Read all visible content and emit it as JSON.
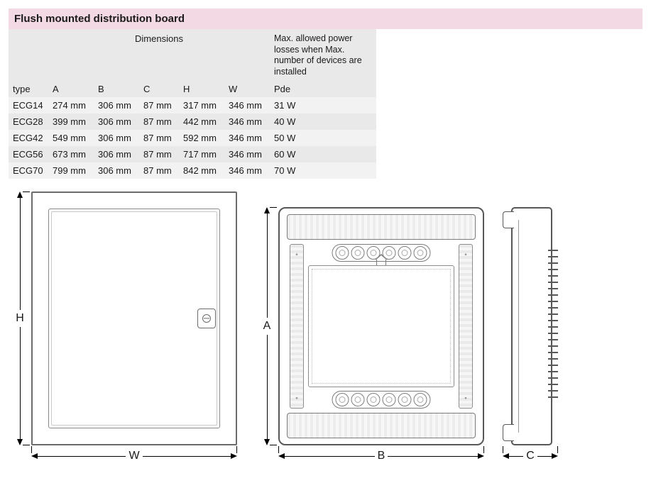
{
  "title": "Flush mounted distribution board",
  "table": {
    "type_label": "type",
    "dimensions_label": "Dimensions",
    "pde_header": "Max. allowed power losses when Max. number of devices are installed",
    "columns": [
      "A",
      "B",
      "C",
      "H",
      "W"
    ],
    "pde_sub": "Pde",
    "rows": [
      {
        "type": "ECG14",
        "A": "274 mm",
        "B": "306 mm",
        "C": "87 mm",
        "H": "317 mm",
        "W": "346 mm",
        "Pde": "31 W"
      },
      {
        "type": "ECG28",
        "A": "399 mm",
        "B": "306 mm",
        "C": "87 mm",
        "H": "442 mm",
        "W": "346 mm",
        "Pde": "40 W"
      },
      {
        "type": "ECG42",
        "A": "549 mm",
        "B": "306 mm",
        "C": "87 mm",
        "H": "592 mm",
        "W": "346 mm",
        "Pde": "50 W"
      },
      {
        "type": "ECG56",
        "A": "673 mm",
        "B": "306 mm",
        "C": "87 mm",
        "H": "717 mm",
        "W": "346 mm",
        "Pde": "60 W"
      },
      {
        "type": "ECG70",
        "A": "799 mm",
        "B": "306 mm",
        "C": "87 mm",
        "H": "842 mm",
        "W": "346 mm",
        "Pde": "70 W"
      }
    ]
  },
  "drawings": {
    "front": {
      "v_label": "H",
      "h_label": "W"
    },
    "inside": {
      "v_label": "A",
      "h_label": "B"
    },
    "side": {
      "h_label": "C"
    }
  },
  "colors": {
    "title_bg": "#f3d9e3",
    "row_odd": "#f2f2f2",
    "row_even": "#e9e9ea",
    "line": "#575757"
  }
}
